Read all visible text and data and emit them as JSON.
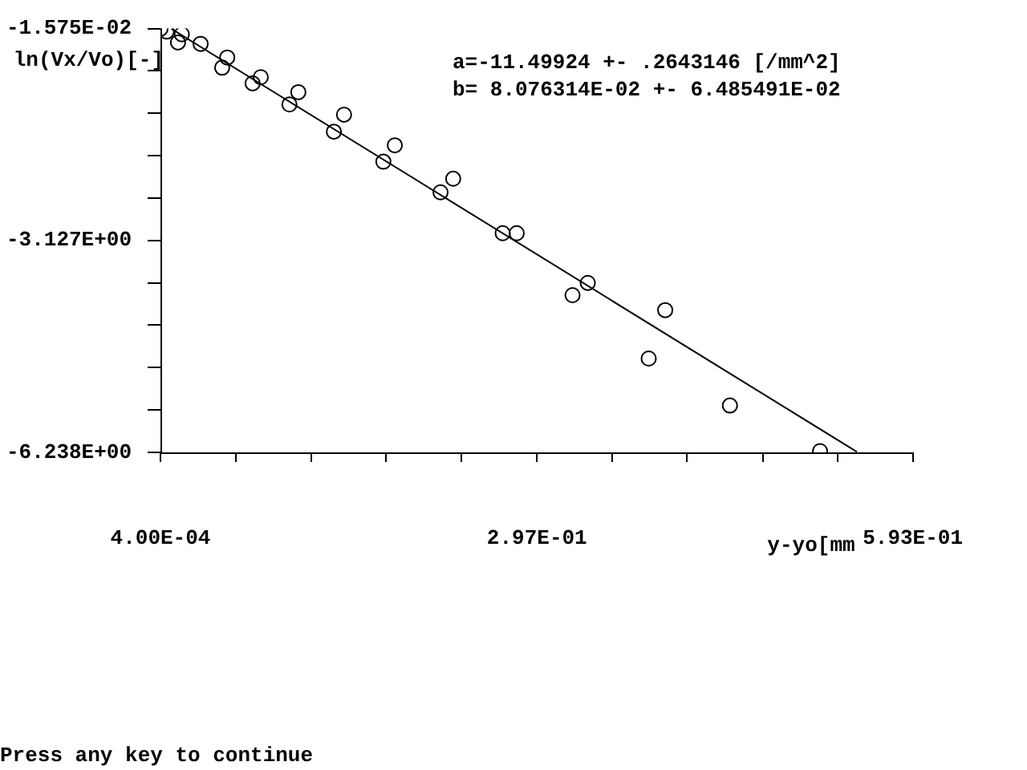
{
  "chart_data": {
    "type": "scatter",
    "xlabel": "y-yo[mm",
    "ylabel": "ln(Vx/Vo)[-]",
    "annotations": [
      "a=-11.49924 +- .2643146 [/mm^2]",
      "b= 8.076314E-02 +- 6.485491E-02",
      "Press any key to continue"
    ],
    "xlim": [
      0.0004,
      0.593
    ],
    "ylim": [
      -6.238,
      -0.01575
    ],
    "xticks": [
      {
        "value": 0.0004,
        "label": "4.00E-04"
      },
      {
        "value": 0.0597,
        "label": null
      },
      {
        "value": 0.119,
        "label": null
      },
      {
        "value": 0.1783,
        "label": null
      },
      {
        "value": 0.2376,
        "label": null
      },
      {
        "value": 0.297,
        "label": "2.97E-01"
      },
      {
        "value": 0.356,
        "label": null
      },
      {
        "value": 0.415,
        "label": null
      },
      {
        "value": 0.475,
        "label": null
      },
      {
        "value": 0.534,
        "label": null
      },
      {
        "value": 0.593,
        "label": "5.93E-01"
      }
    ],
    "yticks": [
      {
        "value": -6.238,
        "label": "-6.238E+00"
      },
      {
        "value": -5.616,
        "label": null
      },
      {
        "value": -4.993,
        "label": null
      },
      {
        "value": -4.371,
        "label": null
      },
      {
        "value": -3.749,
        "label": null
      },
      {
        "value": -3.127,
        "label": "-3.127E+00"
      },
      {
        "value": -2.505,
        "label": null
      },
      {
        "value": -1.882,
        "label": null
      },
      {
        "value": -1.26,
        "label": null
      },
      {
        "value": -0.638,
        "label": null
      },
      {
        "value": -0.01575,
        "label": "-1.575E-02"
      }
    ],
    "grid": false,
    "legend": false,
    "marker": "circle",
    "series": [
      {
        "color": "#000000",
        "x": [
          0.0004,
          0.0053,
          0.0172,
          0.0142,
          0.032,
          0.053,
          0.049,
          0.073,
          0.0794,
          0.102,
          0.109,
          0.137,
          0.145,
          0.176,
          0.185,
          0.221,
          0.231,
          0.27,
          0.281,
          0.325,
          0.337,
          0.385,
          0.398,
          0.449,
          0.52
        ],
        "values": [
          -0.02,
          -0.06,
          -0.1,
          -0.22,
          -0.24,
          -0.44,
          -0.59,
          -0.82,
          -0.73,
          -1.13,
          -0.95,
          -1.53,
          -1.28,
          -1.97,
          -1.73,
          -2.42,
          -2.22,
          -3.02,
          -3.02,
          -3.93,
          -3.75,
          -4.86,
          -4.15,
          -5.55,
          -6.22
        ]
      },
      {
        "type": "line",
        "color": "#000000",
        "marker": "none",
        "x": [
          0.009,
          0.549
        ],
        "values": [
          -0.02,
          -6.23
        ]
      }
    ]
  }
}
